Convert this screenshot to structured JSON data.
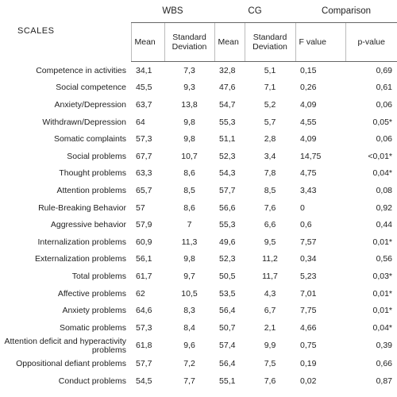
{
  "table": {
    "header": {
      "scales": "SCALES",
      "group_wbs": "WBS",
      "group_cg": "CG",
      "group_comparison": "Comparison",
      "mean_wbs": "Mean",
      "sd_wbs": "Standard Deviation",
      "mean_cg": "Mean",
      "sd_cg": "Standard Deviation",
      "f_value": "F value",
      "p_value": "p-value"
    },
    "rows": [
      [
        "Competence in activities",
        "34,1",
        "7,3",
        "32,8",
        "5,1",
        "0,15",
        "0,69"
      ],
      [
        "Social competence",
        "45,5",
        "9,3",
        "47,6",
        "7,1",
        "0,26",
        "0,61"
      ],
      [
        "Anxiety/Depression",
        "63,7",
        "13,8",
        "54,7",
        "5,2",
        "4,09",
        "0,06"
      ],
      [
        "Withdrawn/Depression",
        "64",
        "9,8",
        "55,3",
        "5,7",
        "4,55",
        "0,05*"
      ],
      [
        "Somatic complaints",
        "57,3",
        "9,8",
        "51,1",
        "2,8",
        "4,09",
        "0,06"
      ],
      [
        "Social problems",
        "67,7",
        "10,7",
        "52,3",
        "3,4",
        "14,75",
        "<0,01*"
      ],
      [
        "Thought problems",
        "63,3",
        "8,6",
        "54,3",
        "7,8",
        "4,75",
        "0,04*"
      ],
      [
        "Attention problems",
        "65,7",
        "8,5",
        "57,7",
        "8,5",
        "3,43",
        "0,08"
      ],
      [
        "Rule-Breaking Behavior",
        "57",
        "8,6",
        "56,6",
        "7,6",
        "0",
        "0,92"
      ],
      [
        "Aggressive behavior",
        "57,9",
        "7",
        "55,3",
        "6,6",
        "0,6",
        "0,44"
      ],
      [
        "Internalization problems",
        "60,9",
        "11,3",
        "49,6",
        "9,5",
        "7,57",
        "0,01*"
      ],
      [
        "Externalization problems",
        "56,1",
        "9,8",
        "52,3",
        "11,2",
        "0,34",
        "0,56"
      ],
      [
        "Total problems",
        "61,7",
        "9,7",
        "50,5",
        "11,7",
        "5,23",
        "0,03*"
      ],
      [
        "Affective problems",
        "62",
        "10,5",
        "53,5",
        "4,3",
        "7,01",
        "0,01*"
      ],
      [
        "Anxiety problems",
        "64,6",
        "8,3",
        "56,4",
        "6,7",
        "7,75",
        "0,01*"
      ],
      [
        "Somatic problems",
        "57,3",
        "8,4",
        "50,7",
        "2,1",
        "4,66",
        "0,04*"
      ],
      [
        "Attention deficit and hyperactivity problems",
        "61,8",
        "9,6",
        "57,4",
        "9,9",
        "0,75",
        "0,39"
      ],
      [
        "Oppositional defiant problems",
        "57,7",
        "7,2",
        "56,4",
        "7,5",
        "0,19",
        "0,66"
      ],
      [
        "Conduct problems",
        "54,5",
        "7,7",
        "55,1",
        "7,6",
        "0,02",
        "0,87"
      ]
    ]
  }
}
